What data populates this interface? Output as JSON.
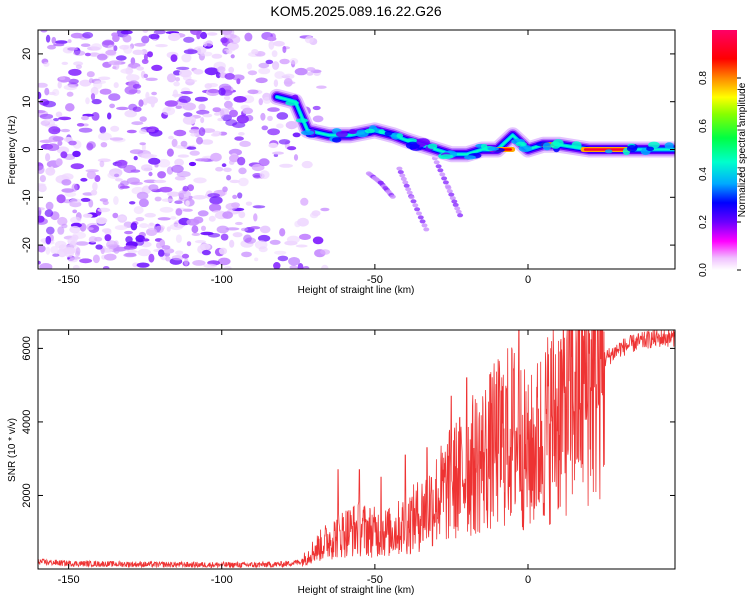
{
  "title": "KOM5.2025.089.16.22.G26",
  "chart_data": [
    {
      "type": "heatmap",
      "xlabel": "Height of straight line (km)",
      "ylabel": "Frequency (Hz)",
      "xlim": [
        -160,
        48
      ],
      "ylim": [
        -25,
        25
      ],
      "x_ticks": [
        -150,
        -100,
        -50,
        0
      ],
      "y_ticks": [
        -20,
        -10,
        0,
        10,
        20
      ],
      "colorbar": {
        "label": "Normalized spectral amplitude",
        "range": [
          0.0,
          1.0
        ],
        "ticks": [
          0.0,
          0.2,
          0.4,
          0.6,
          0.8
        ],
        "tick_labels": [
          "0.0",
          "0.2",
          "0.4",
          "0.6",
          "0.8"
        ],
        "colormap": [
          "#ffffff",
          "#ff00ff",
          "#6a00ff",
          "#0000ff",
          "#00aaff",
          "#00ffdd",
          "#00ff66",
          "#55ff00",
          "#ccff00",
          "#ffaa00",
          "#ff0000",
          "#ff0066"
        ]
      },
      "ridge": {
        "note_free": true,
        "points": [
          [
            -82,
            11
          ],
          [
            -76,
            10
          ],
          [
            -72,
            4
          ],
          [
            -65,
            3
          ],
          [
            -58,
            3
          ],
          [
            -50,
            4
          ],
          [
            -44,
            3
          ],
          [
            -40,
            2
          ],
          [
            -35,
            1
          ],
          [
            -30,
            0
          ],
          [
            -25,
            -1
          ],
          [
            -20,
            -1
          ],
          [
            -15,
            0
          ],
          [
            -10,
            0
          ],
          [
            -5,
            3
          ],
          [
            0,
            0
          ],
          [
            5,
            1
          ],
          [
            10,
            1
          ],
          [
            20,
            0
          ],
          [
            30,
            0
          ],
          [
            40,
            0
          ],
          [
            48,
            0
          ]
        ]
      },
      "branches": [
        [
          [
            -52,
            -5
          ],
          [
            -48,
            -7
          ],
          [
            -44,
            -10
          ]
        ],
        [
          [
            -42,
            -4
          ],
          [
            -38,
            -10
          ],
          [
            -33,
            -17
          ]
        ],
        [
          [
            -31,
            -1
          ],
          [
            -26,
            -8
          ],
          [
            -22,
            -14
          ]
        ]
      ],
      "noise_region": [
        -160,
        -72
      ]
    },
    {
      "type": "line",
      "xlabel": "Height of straight line (km)",
      "ylabel": "SNR (10 * v/v)",
      "xlim": [
        -160,
        48
      ],
      "ylim": [
        0,
        6500
      ],
      "x_ticks": [
        -150,
        -100,
        -50,
        0
      ],
      "y_ticks": [
        2000,
        4000,
        6000
      ],
      "line_color": "#ee3333",
      "envelope": [
        [
          -160,
          200
        ],
        [
          -150,
          150
        ],
        [
          -120,
          120
        ],
        [
          -90,
          110
        ],
        [
          -80,
          130
        ],
        [
          -74,
          200
        ],
        [
          -70,
          500
        ],
        [
          -65,
          800
        ],
        [
          -60,
          1000
        ],
        [
          -55,
          1100
        ],
        [
          -50,
          1000
        ],
        [
          -45,
          1000
        ],
        [
          -40,
          1200
        ],
        [
          -35,
          1500
        ],
        [
          -30,
          1900
        ],
        [
          -25,
          2300
        ],
        [
          -20,
          2700
        ],
        [
          -15,
          3000
        ],
        [
          -10,
          3400
        ],
        [
          -5,
          3700
        ],
        [
          -2,
          3400
        ],
        [
          0,
          3000
        ],
        [
          5,
          3700
        ],
        [
          10,
          4300
        ],
        [
          15,
          4800
        ],
        [
          20,
          5300
        ],
        [
          25,
          5700
        ],
        [
          30,
          6000
        ],
        [
          35,
          6150
        ],
        [
          40,
          6250
        ],
        [
          48,
          6300
        ]
      ],
      "spikes": [
        [
          -3,
          6500
        ],
        [
          -20,
          5200
        ],
        [
          -7,
          4900
        ],
        [
          -25,
          4700
        ],
        [
          -12,
          4500
        ],
        [
          -40,
          3100
        ],
        [
          -33,
          3300
        ],
        [
          -62,
          2700
        ],
        [
          -55,
          2700
        ],
        [
          -48,
          2500
        ]
      ]
    }
  ]
}
